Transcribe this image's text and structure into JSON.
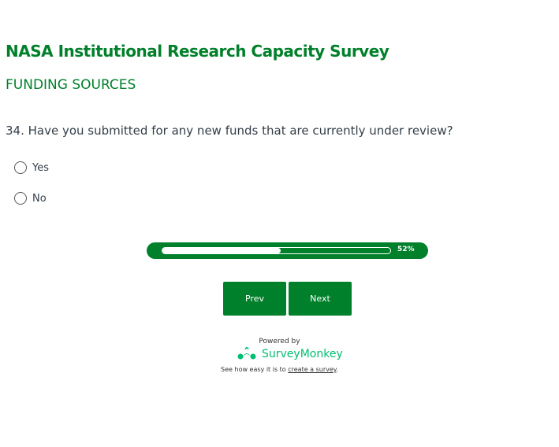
{
  "survey": {
    "title": "NASA Institutional Research Capacity Survey",
    "page_title": "FUNDING SOURCES"
  },
  "question": {
    "text": "34. Have you submitted for any new funds that are currently under review?",
    "options": [
      {
        "label": "Yes"
      },
      {
        "label": "No"
      }
    ]
  },
  "progress": {
    "value": 52,
    "label": "52%"
  },
  "nav": {
    "prev": "Prev",
    "next": "Next"
  },
  "footer": {
    "powered_by": "Powered by",
    "brand": "SurveyMonkey",
    "tagline_prefix": "See how easy it is to ",
    "link": "create a survey",
    "tagline_suffix": "."
  },
  "colors": {
    "accent": "#00802b",
    "brand": "#00bf6f"
  }
}
